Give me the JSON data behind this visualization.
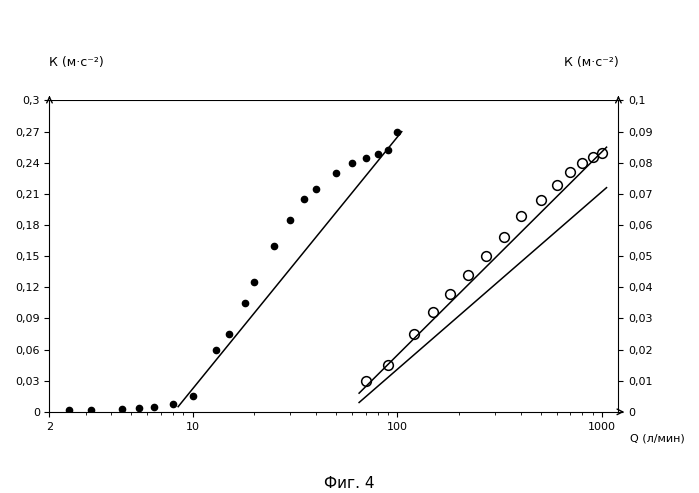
{
  "title": "Фиг. 4",
  "xlabel": "Q (л/мин)",
  "ylabel_left": "К (м·с⁻²)",
  "ylabel_right": "К (м·с⁻²)",
  "xlim": [
    2,
    1200
  ],
  "ylim_left": [
    0,
    0.3
  ],
  "ylim_right": [
    0,
    0.1
  ],
  "yticks_left": [
    0,
    0.03,
    0.06,
    0.09,
    0.12,
    0.15,
    0.18,
    0.21,
    0.24,
    0.27,
    0.3
  ],
  "ytick_labels_left": [
    "0",
    "0,03",
    "0,06",
    "0,09",
    "0,12",
    "0,15",
    "0,18",
    "0,21",
    "0,24",
    "0,27",
    "0,3"
  ],
  "yticks_right": [
    0,
    0.01,
    0.02,
    0.03,
    0.04,
    0.05,
    0.06,
    0.07,
    0.08,
    0.09,
    0.1
  ],
  "ytick_labels_right": [
    "0",
    "0,01",
    "0,02",
    "0,03",
    "0,04",
    "0,05",
    "0,06",
    "0,07",
    "0,08",
    "0,09",
    "0,1"
  ],
  "filled_dots": [
    [
      2.5,
      0.002
    ],
    [
      3.2,
      0.002
    ],
    [
      4.5,
      0.003
    ],
    [
      5.5,
      0.004
    ],
    [
      6.5,
      0.005
    ],
    [
      8.0,
      0.008
    ],
    [
      10.0,
      0.015
    ],
    [
      13.0,
      0.06
    ],
    [
      15.0,
      0.075
    ],
    [
      18.0,
      0.105
    ],
    [
      20.0,
      0.125
    ],
    [
      25.0,
      0.16
    ],
    [
      30.0,
      0.185
    ],
    [
      35.0,
      0.205
    ],
    [
      40.0,
      0.215
    ],
    [
      50.0,
      0.23
    ],
    [
      60.0,
      0.24
    ],
    [
      70.0,
      0.245
    ],
    [
      80.0,
      0.248
    ],
    [
      90.0,
      0.252
    ],
    [
      100.0,
      0.27
    ]
  ],
  "open_dots": [
    [
      70,
      0.01
    ],
    [
      90,
      0.015
    ],
    [
      120,
      0.025
    ],
    [
      150,
      0.032
    ],
    [
      180,
      0.038
    ],
    [
      220,
      0.044
    ],
    [
      270,
      0.05
    ],
    [
      330,
      0.056
    ],
    [
      400,
      0.063
    ],
    [
      500,
      0.068
    ],
    [
      600,
      0.073
    ],
    [
      700,
      0.077
    ],
    [
      800,
      0.08
    ],
    [
      900,
      0.082
    ],
    [
      1000,
      0.083
    ]
  ],
  "filled_line_x": [
    8.5,
    105
  ],
  "filled_line_y": [
    0.005,
    0.27
  ],
  "open_line1_x": [
    65,
    1050
  ],
  "open_line1_y": [
    0.006,
    0.085
  ],
  "open_line2_x": [
    65,
    1050
  ],
  "open_line2_y": [
    0.003,
    0.072
  ],
  "background_color": "#ffffff",
  "dot_color": "#000000"
}
